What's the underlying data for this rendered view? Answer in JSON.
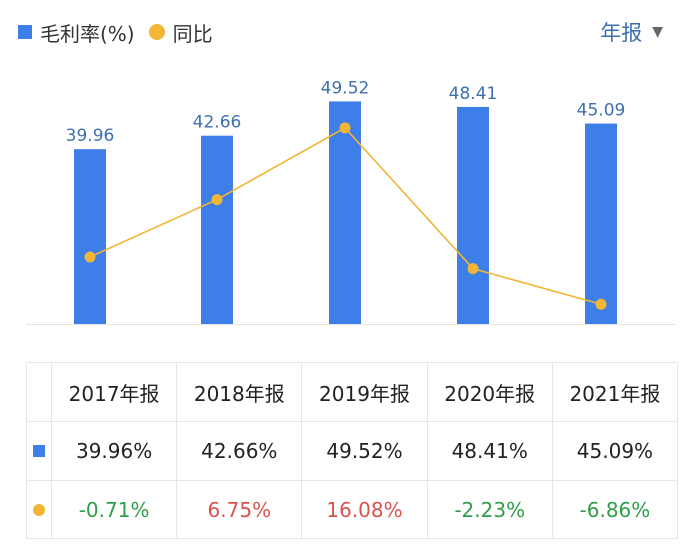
{
  "legend": {
    "bar_label": "毛利率(%)",
    "line_label": "同比"
  },
  "period": {
    "label": "年报"
  },
  "colors": {
    "bar": "#3d7ee8",
    "line": "#f2b535",
    "positive": "#d9534f",
    "negative": "#2e9e4a",
    "value_label": "#3d6fb0"
  },
  "chart_data": {
    "type": "bar",
    "categories": [
      "2017年报",
      "2018年报",
      "2019年报",
      "2020年报",
      "2021年报"
    ],
    "series": [
      {
        "name": "毛利率(%)",
        "type": "bar",
        "values": [
          39.96,
          42.66,
          49.52,
          48.41,
          45.09
        ]
      },
      {
        "name": "同比",
        "type": "line",
        "values": [
          -0.71,
          6.75,
          16.08,
          -2.23,
          -6.86
        ]
      }
    ],
    "bar_labels": [
      "39.96",
      "42.66",
      "49.52",
      "48.41",
      "45.09"
    ]
  },
  "table": {
    "headers": [
      "2017年报",
      "2018年报",
      "2019年报",
      "2020年报",
      "2021年报"
    ],
    "bar_row": [
      "39.96%",
      "42.66%",
      "49.52%",
      "48.41%",
      "45.09%"
    ],
    "line_row": [
      "-0.71%",
      "6.75%",
      "16.08%",
      "-2.23%",
      "-6.86%"
    ]
  }
}
